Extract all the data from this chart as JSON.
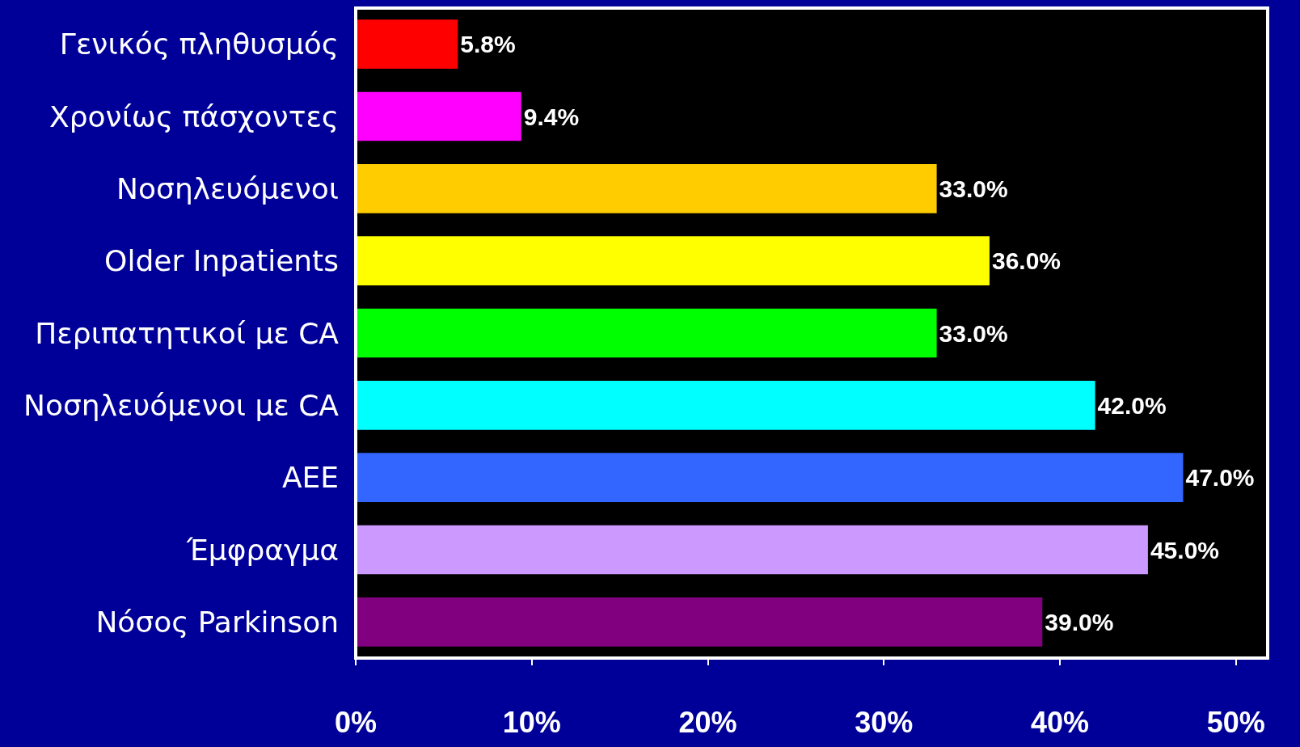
{
  "chart_data": {
    "type": "bar",
    "orientation": "horizontal",
    "categories": [
      "Γενικός πληθυσμός",
      "Χρονίως πάσχοντες",
      "Νοσηλευόμενοι",
      "Older Inpatients",
      "Περιπατητικοί με CA",
      "Νοσηλευόμενοι με CA",
      "ΑΕΕ",
      "Έμφραγμα",
      "Νόσος Parkinson"
    ],
    "values": [
      5.8,
      9.4,
      33.0,
      36.0,
      33.0,
      42.0,
      47.0,
      45.0,
      39.0
    ],
    "value_labels": [
      "5.8%",
      "9.4%",
      "33.0%",
      "36.0%",
      "33.0%",
      "42.0%",
      "47.0%",
      "45.0%",
      "39.0%"
    ],
    "colors": [
      "#ff0000",
      "#ff00ff",
      "#ffcc00",
      "#ffff00",
      "#00ff00",
      "#00ffff",
      "#3366ff",
      "#cc99ff",
      "#800080"
    ],
    "xlim": [
      0,
      51.8
    ],
    "xticks": [
      {
        "value": 0,
        "label": "0%"
      },
      {
        "value": 10,
        "label": "10%"
      },
      {
        "value": 20,
        "label": "20%"
      },
      {
        "value": 30,
        "label": "30%"
      },
      {
        "value": 40,
        "label": "40%"
      },
      {
        "value": 50,
        "label": "50%"
      }
    ],
    "grid": false
  }
}
